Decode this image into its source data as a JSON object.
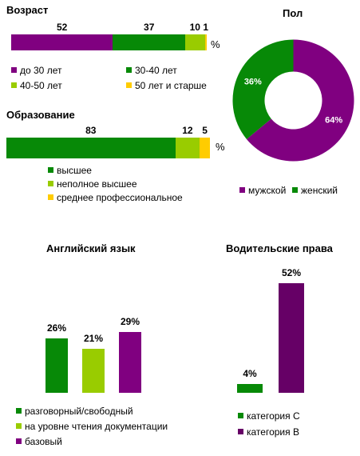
{
  "colors": {
    "purple": "#800080",
    "green": "#078907",
    "lightgreen": "#99cc00",
    "yellow": "#ffcc00",
    "darkpurple": "#660066"
  },
  "chart_data": [
    {
      "type": "bar",
      "orientation": "horizontal-stacked",
      "title": "Возраст",
      "unit": "%",
      "series": [
        {
          "name": "до 30 лет",
          "value": 52,
          "color": "#800080"
        },
        {
          "name": "30-40  лет",
          "value": 37,
          "color": "#078907"
        },
        {
          "name": "40-50  лет",
          "value": 10,
          "color": "#99cc00"
        },
        {
          "name": "50 лет  и  старше",
          "value": 1,
          "color": "#ffcc00"
        }
      ]
    },
    {
      "type": "pie",
      "subtype": "donut",
      "title": "Пол",
      "slices": [
        {
          "name": "мужской",
          "value": 64,
          "label": "64%",
          "color": "#800080"
        },
        {
          "name": "женский",
          "value": 36,
          "label": "36%",
          "color": "#078907"
        }
      ]
    },
    {
      "type": "bar",
      "orientation": "horizontal-stacked",
      "title": "Образование",
      "unit": "%",
      "series": [
        {
          "name": "высшее",
          "value": 83,
          "color": "#078907"
        },
        {
          "name": "неполное высшее",
          "value": 12,
          "color": "#99cc00"
        },
        {
          "name": "среднее профессиональное",
          "value": 5,
          "color": "#ffcc00"
        }
      ]
    },
    {
      "type": "bar",
      "title": "Английский язык",
      "categories": [
        "разговорный/свободный",
        "на уровне чтения документации",
        "базовый"
      ],
      "values": [
        26,
        21,
        29
      ],
      "labels": [
        "26%",
        "21%",
        "29%"
      ],
      "colors": [
        "#078907",
        "#99cc00",
        "#800080"
      ],
      "ylim": [
        0,
        52
      ]
    },
    {
      "type": "bar",
      "title": "Водительские права",
      "categories": [
        "категория  С",
        "категория  В"
      ],
      "values": [
        4,
        52
      ],
      "labels": [
        "4%",
        "52%"
      ],
      "colors": [
        "#078907",
        "#660066"
      ],
      "ylim": [
        0,
        52
      ]
    }
  ]
}
